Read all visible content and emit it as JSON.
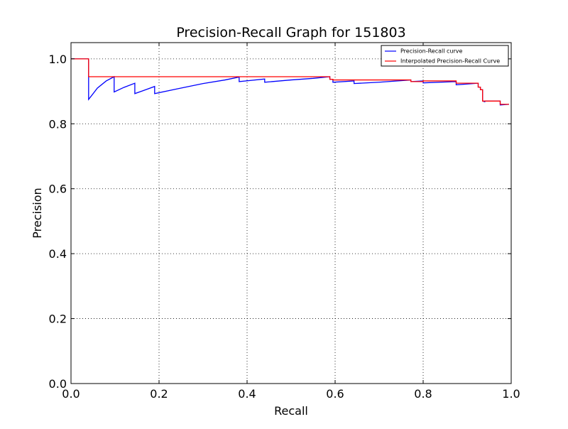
{
  "chart_data": {
    "type": "line",
    "title": "Precision-Recall Graph for 151803",
    "xlabel": "Recall",
    "ylabel": "Precision",
    "xlim": [
      0.0,
      1.0
    ],
    "ylim": [
      0.0,
      1.05
    ],
    "xticks": [
      "0.0",
      "0.2",
      "0.4",
      "0.6",
      "0.8",
      "1.0"
    ],
    "yticks": [
      "0.0",
      "0.2",
      "0.4",
      "0.6",
      "0.8",
      "1.0"
    ],
    "grid": true,
    "legend_position": "top-right",
    "series": [
      {
        "name": "Precision-Recall curve",
        "color": "#0000ff",
        "x": [
          0.0,
          0.04,
          0.04,
          0.06,
          0.08,
          0.098,
          0.098,
          0.12,
          0.145,
          0.145,
          0.17,
          0.19,
          0.19,
          0.25,
          0.3,
          0.35,
          0.382,
          0.382,
          0.44,
          0.44,
          0.5,
          0.55,
          0.588,
          0.588,
          0.595,
          0.595,
          0.643,
          0.643,
          0.7,
          0.772,
          0.772,
          0.8,
          0.8,
          0.875,
          0.875,
          0.925,
          0.925,
          0.93,
          0.93,
          0.935,
          0.935,
          0.94,
          0.94,
          0.975,
          0.975,
          0.995
        ],
        "y": [
          1.0,
          1.0,
          0.875,
          0.91,
          0.932,
          0.945,
          0.898,
          0.912,
          0.925,
          0.893,
          0.905,
          0.915,
          0.893,
          0.91,
          0.924,
          0.935,
          0.944,
          0.93,
          0.938,
          0.928,
          0.935,
          0.94,
          0.945,
          0.937,
          0.937,
          0.928,
          0.932,
          0.924,
          0.928,
          0.935,
          0.93,
          0.932,
          0.926,
          0.93,
          0.92,
          0.925,
          0.913,
          0.913,
          0.905,
          0.905,
          0.87,
          0.868,
          0.87,
          0.87,
          0.858,
          0.86
        ]
      },
      {
        "name": "Interpolated Precision-Recall Curve",
        "color": "#ff0000",
        "x": [
          0.0,
          0.04,
          0.04,
          0.588,
          0.588,
          0.595,
          0.595,
          0.772,
          0.772,
          0.8,
          0.8,
          0.875,
          0.875,
          0.925,
          0.925,
          0.93,
          0.93,
          0.935,
          0.935,
          0.975,
          0.975,
          0.995
        ],
        "y": [
          1.0,
          1.0,
          0.945,
          0.945,
          0.937,
          0.937,
          0.935,
          0.935,
          0.93,
          0.93,
          0.932,
          0.932,
          0.925,
          0.925,
          0.913,
          0.913,
          0.905,
          0.905,
          0.87,
          0.87,
          0.86,
          0.86
        ]
      }
    ]
  }
}
